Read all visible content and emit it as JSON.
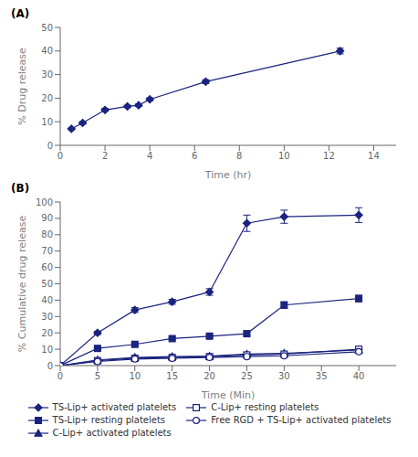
{
  "chart_data": [
    {
      "type": "line",
      "title": "(A)",
      "x": [
        0.5,
        1.0,
        2.0,
        3.0,
        3.5,
        4.0,
        6.5,
        12.5
      ],
      "values": [
        7.0,
        9.5,
        15.0,
        16.5,
        17.0,
        19.5,
        27.0,
        40.0
      ],
      "yerr": [
        0.3,
        0.5,
        0.6,
        0.5,
        0.5,
        0.6,
        0.8,
        1.2
      ],
      "color": "#1a237e",
      "marker": "diamond",
      "line_style": "solid",
      "x_label": "Time (hr)",
      "y_label": "% Drug release",
      "xlim": [
        0,
        15
      ],
      "ylim": [
        0,
        50
      ],
      "xticks": [
        0,
        2,
        4,
        6,
        8,
        10,
        12,
        14
      ],
      "yticks": [
        0,
        10,
        20,
        30,
        40,
        50
      ],
      "grid": false
    },
    {
      "type": "line",
      "title": "(B)",
      "x": [
        0,
        5,
        10,
        15,
        20,
        25,
        30,
        40
      ],
      "series": [
        {
          "name": "TS-Lip+ activated platelets",
          "color": "#1a237e",
          "marker": "diamond",
          "line_style": "solid",
          "values": [
            0,
            20,
            34,
            39,
            45,
            87,
            91,
            92
          ],
          "yerr": [
            0,
            1.0,
            1.5,
            1.5,
            2.0,
            5.0,
            4.0,
            4.5
          ]
        },
        {
          "name": "TS-Lip+ resting platelets",
          "color": "#1a237e",
          "marker": "square",
          "line_style": "solid",
          "values": [
            0,
            10.5,
            13.0,
            16.5,
            18.0,
            19.5,
            37.0,
            41.0
          ],
          "yerr": [
            0,
            0.5,
            0.8,
            0.8,
            0.8,
            1.0,
            2.0,
            2.0
          ]
        },
        {
          "name": "C-Lip+ activated platelets",
          "color": "#1a237e",
          "marker": "triangle",
          "line_style": "solid",
          "values": [
            0,
            3.5,
            5.0,
            5.5,
            5.8,
            7.0,
            7.5,
            9.5
          ],
          "yerr": [
            0,
            0.3,
            0.3,
            0.3,
            0.3,
            0.4,
            0.4,
            0.5
          ]
        },
        {
          "name": "C-Lip+ resting platelets",
          "color": "#1a237e",
          "marker": "square-open",
          "line_style": "solid",
          "values": [
            0,
            3.0,
            4.5,
            5.0,
            5.5,
            6.5,
            7.0,
            10.0
          ],
          "yerr": [
            0,
            0.3,
            0.3,
            0.3,
            0.3,
            0.4,
            0.4,
            0.5
          ]
        },
        {
          "name": "Free RGD + TS-Lip+ activated platelets",
          "color": "#1a237e",
          "marker": "circle-open",
          "line_style": "solid",
          "values": [
            0,
            2.5,
            4.0,
            4.5,
            5.0,
            5.5,
            6.0,
            8.5
          ],
          "yerr": [
            0,
            0.2,
            0.3,
            0.3,
            0.3,
            0.3,
            0.3,
            0.4
          ]
        }
      ],
      "x_label": "Time (Min)",
      "y_label": "% Cumulative drug release",
      "xlim": [
        0,
        45
      ],
      "ylim": [
        0,
        100
      ],
      "xticks": [
        0,
        5,
        10,
        15,
        20,
        25,
        30,
        35,
        40
      ],
      "yticks": [
        0,
        10,
        20,
        30,
        40,
        50,
        60,
        70,
        80,
        90,
        100
      ],
      "grid": false,
      "legend": "bottom"
    }
  ]
}
